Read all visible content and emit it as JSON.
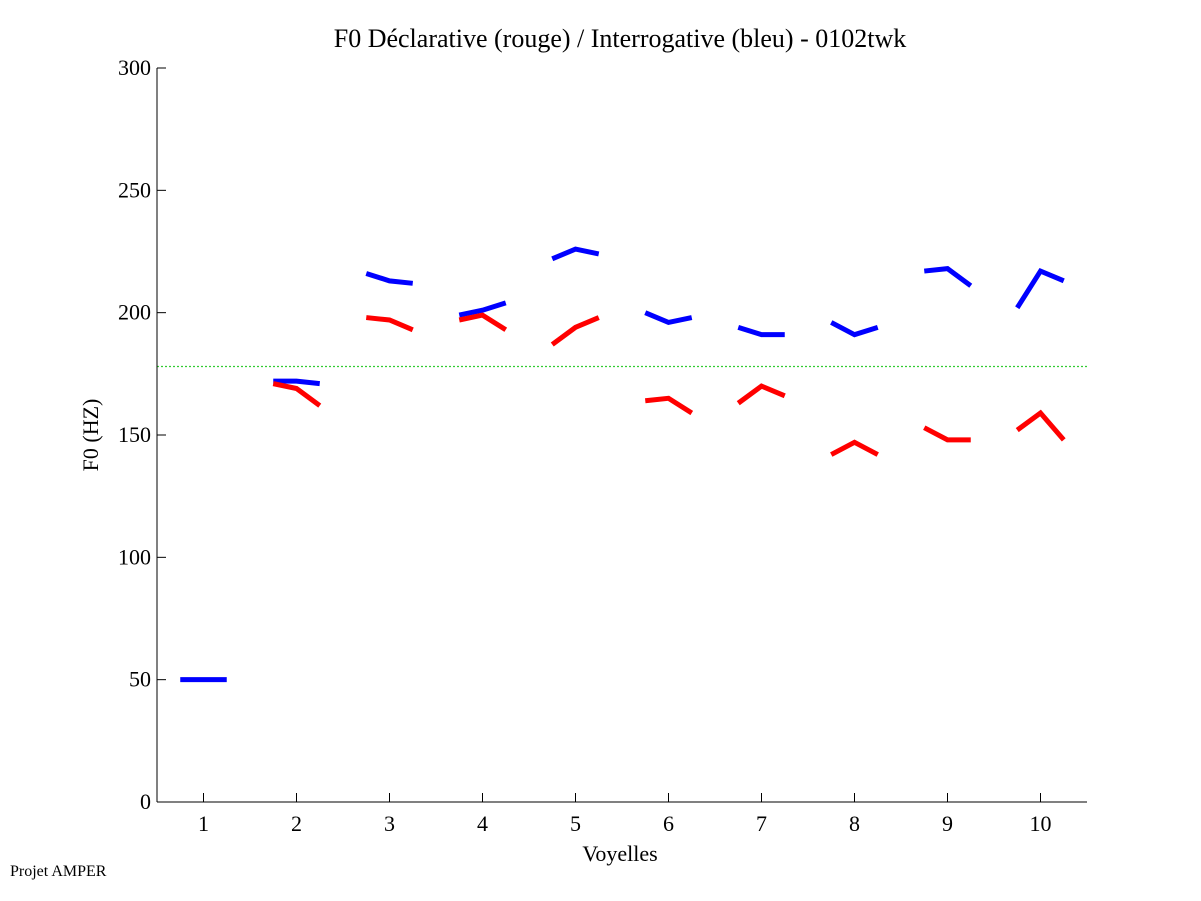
{
  "chart_data": {
    "type": "line",
    "title": "F0 Déclarative (rouge) / Interrogative (bleu) - 0102twk",
    "xlabel": "Voyelles",
    "ylabel": "F0 (HZ)",
    "xlim": [
      0.5,
      10.5
    ],
    "ylim": [
      0,
      300
    ],
    "xticks": [
      1,
      2,
      3,
      4,
      5,
      6,
      7,
      8,
      9,
      10
    ],
    "yticks": [
      0,
      50,
      100,
      150,
      200,
      250,
      300
    ],
    "reference_line": {
      "y": 178,
      "color": "#33cc33",
      "style": "dotted"
    },
    "series": [
      {
        "name": "Interrogative",
        "color": "#0000ff",
        "segments": [
          {
            "x": [
              0.75,
              1.0,
              1.25
            ],
            "y": [
              50,
              50,
              50
            ]
          },
          {
            "x": [
              1.75,
              2.0,
              2.25
            ],
            "y": [
              172,
              172,
              171
            ]
          },
          {
            "x": [
              2.75,
              3.0,
              3.25
            ],
            "y": [
              216,
              213,
              212
            ]
          },
          {
            "x": [
              3.75,
              4.0,
              4.25
            ],
            "y": [
              199,
              201,
              204
            ]
          },
          {
            "x": [
              4.75,
              5.0,
              5.25
            ],
            "y": [
              222,
              226,
              224
            ]
          },
          {
            "x": [
              5.75,
              6.0,
              6.25
            ],
            "y": [
              200,
              196,
              198
            ]
          },
          {
            "x": [
              6.75,
              7.0,
              7.25
            ],
            "y": [
              194,
              191,
              191
            ]
          },
          {
            "x": [
              7.75,
              8.0,
              8.25
            ],
            "y": [
              196,
              191,
              194
            ]
          },
          {
            "x": [
              8.75,
              9.0,
              9.25
            ],
            "y": [
              217,
              218,
              211
            ]
          },
          {
            "x": [
              9.75,
              10.0,
              10.25
            ],
            "y": [
              202,
              217,
              213
            ]
          }
        ]
      },
      {
        "name": "Déclarative",
        "color": "#ff0000",
        "segments": [
          {
            "x": [
              1.75,
              2.0,
              2.25
            ],
            "y": [
              171,
              169,
              162
            ]
          },
          {
            "x": [
              2.75,
              3.0,
              3.25
            ],
            "y": [
              198,
              197,
              193
            ]
          },
          {
            "x": [
              3.75,
              4.0,
              4.25
            ],
            "y": [
              197,
              199,
              193
            ]
          },
          {
            "x": [
              4.75,
              5.0,
              5.25
            ],
            "y": [
              187,
              194,
              198
            ]
          },
          {
            "x": [
              5.75,
              6.0,
              6.25
            ],
            "y": [
              164,
              165,
              159
            ]
          },
          {
            "x": [
              6.75,
              7.0,
              7.25
            ],
            "y": [
              163,
              170,
              166
            ]
          },
          {
            "x": [
              7.75,
              8.0,
              8.25
            ],
            "y": [
              142,
              147,
              142
            ]
          },
          {
            "x": [
              8.75,
              9.0,
              9.25
            ],
            "y": [
              153,
              148,
              148
            ]
          },
          {
            "x": [
              9.75,
              10.0,
              10.25
            ],
            "y": [
              152,
              159,
              148
            ]
          }
        ]
      }
    ]
  },
  "footer": {
    "label": "Projet AMPER"
  }
}
